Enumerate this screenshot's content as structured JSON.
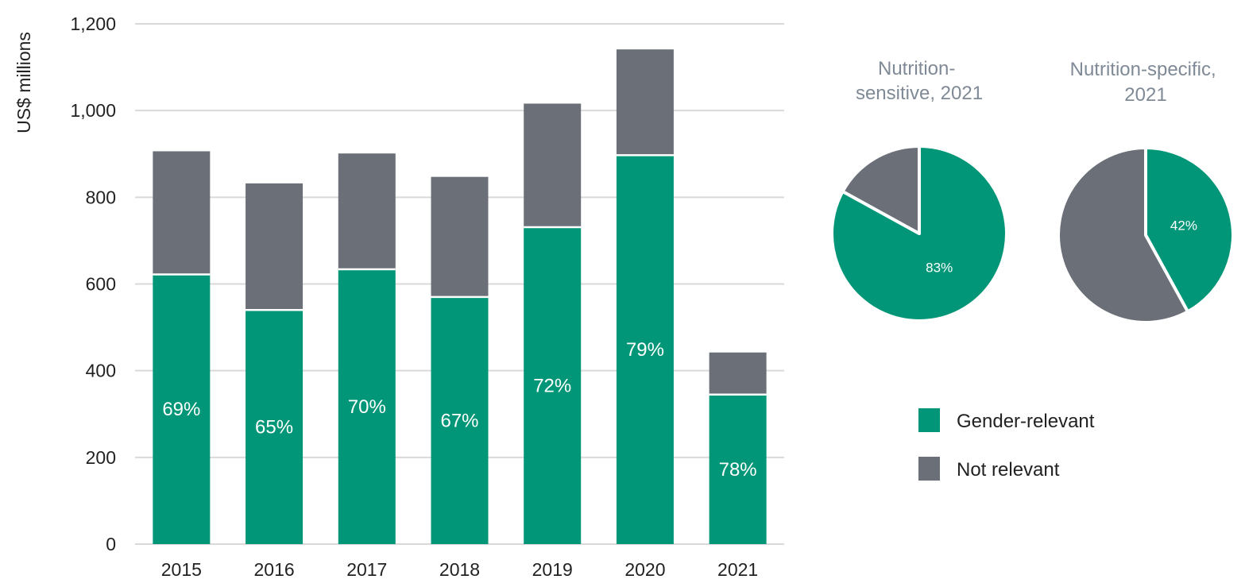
{
  "colors": {
    "gender_relevant": "#009677",
    "not_relevant": "#6b7078",
    "grid": "#d9d9d9",
    "pie_title": "#7f8a96",
    "text": "#222222"
  },
  "chart_data": [
    {
      "type": "bar",
      "stacked": true,
      "categories": [
        "2015",
        "2016",
        "2017",
        "2018",
        "2019",
        "2020",
        "2021"
      ],
      "series": [
        {
          "name": "Gender-relevant",
          "values": [
            622,
            540,
            634,
            570,
            731,
            897,
            345
          ]
        },
        {
          "name": "Not relevant",
          "values": [
            284,
            292,
            267,
            277,
            285,
            244,
            97
          ]
        }
      ],
      "data_labels": [
        "69%",
        "65%",
        "70%",
        "67%",
        "72%",
        "79%",
        "78%"
      ],
      "ylabel": "US$ millions",
      "ylim": [
        0,
        1200
      ],
      "yticks": [
        0,
        200,
        400,
        600,
        800,
        1000,
        1200
      ],
      "ytick_labels": [
        "0",
        "200",
        "400",
        "600",
        "800",
        "1,000",
        "1,200"
      ],
      "grid": true
    },
    {
      "type": "pie",
      "title": "Nutrition-sensitive, 2021",
      "slices": [
        {
          "name": "Gender-relevant",
          "value": 83,
          "label": "83%"
        },
        {
          "name": "Not relevant",
          "value": 17,
          "label": ""
        }
      ]
    },
    {
      "type": "pie",
      "title": "Nutrition-specific, 2021",
      "slices": [
        {
          "name": "Gender-relevant",
          "value": 42,
          "label": "42%"
        },
        {
          "name": "Not relevant",
          "value": 58,
          "label": ""
        }
      ]
    }
  ],
  "legend": {
    "items": [
      {
        "label": "Gender-relevant",
        "color_key": "gender_relevant"
      },
      {
        "label": "Not relevant",
        "color_key": "not_relevant"
      }
    ]
  }
}
